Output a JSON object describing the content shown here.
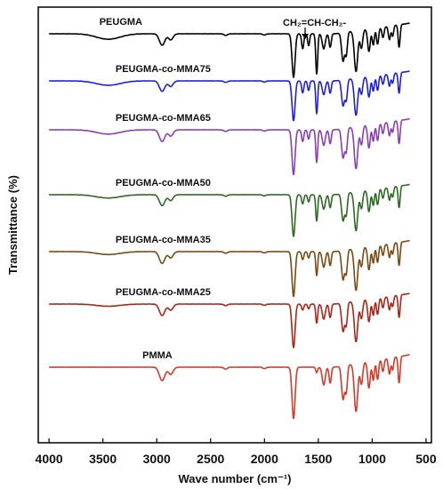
{
  "chart_data": {
    "type": "line",
    "xlabel": "Wave number (cm⁻¹)",
    "ylabel": "Transmittance (%)",
    "xlim": [
      4100,
      450
    ],
    "x_reversed": true,
    "xticks": [
      4000,
      3500,
      3000,
      2500,
      2000,
      1500,
      1000,
      500
    ],
    "y_ticks_shown": false,
    "grid": false,
    "annotation": {
      "text": "CH₂=CH-CH₂-",
      "arrow_at_x": 1600
    },
    "series": [
      {
        "name": "PEUGMA",
        "color": "#000000",
        "offset": 0,
        "label_x": 3450
      },
      {
        "name": "PEUGMA-co-MMA75",
        "color": "#1f1fe0",
        "offset": 1,
        "label_x": 3300
      },
      {
        "name": "PEUGMA-co-MMA65",
        "color": "#8a3fb5",
        "offset": 2,
        "label_x": 3300
      },
      {
        "name": "PEUGMA-co-MMA50",
        "color": "#2e6b22",
        "offset": 3,
        "label_x": 3300
      },
      {
        "name": "PEUGMA-co-MMA35",
        "color": "#7a4a12",
        "offset": 4,
        "label_x": 3300
      },
      {
        "name": "PEUGMA-co-MMA25",
        "color": "#b02418",
        "offset": 5,
        "label_x": 3300
      },
      {
        "name": "PMMA",
        "color": "#d63a2a",
        "offset": 6,
        "label_x": 3050
      }
    ]
  }
}
